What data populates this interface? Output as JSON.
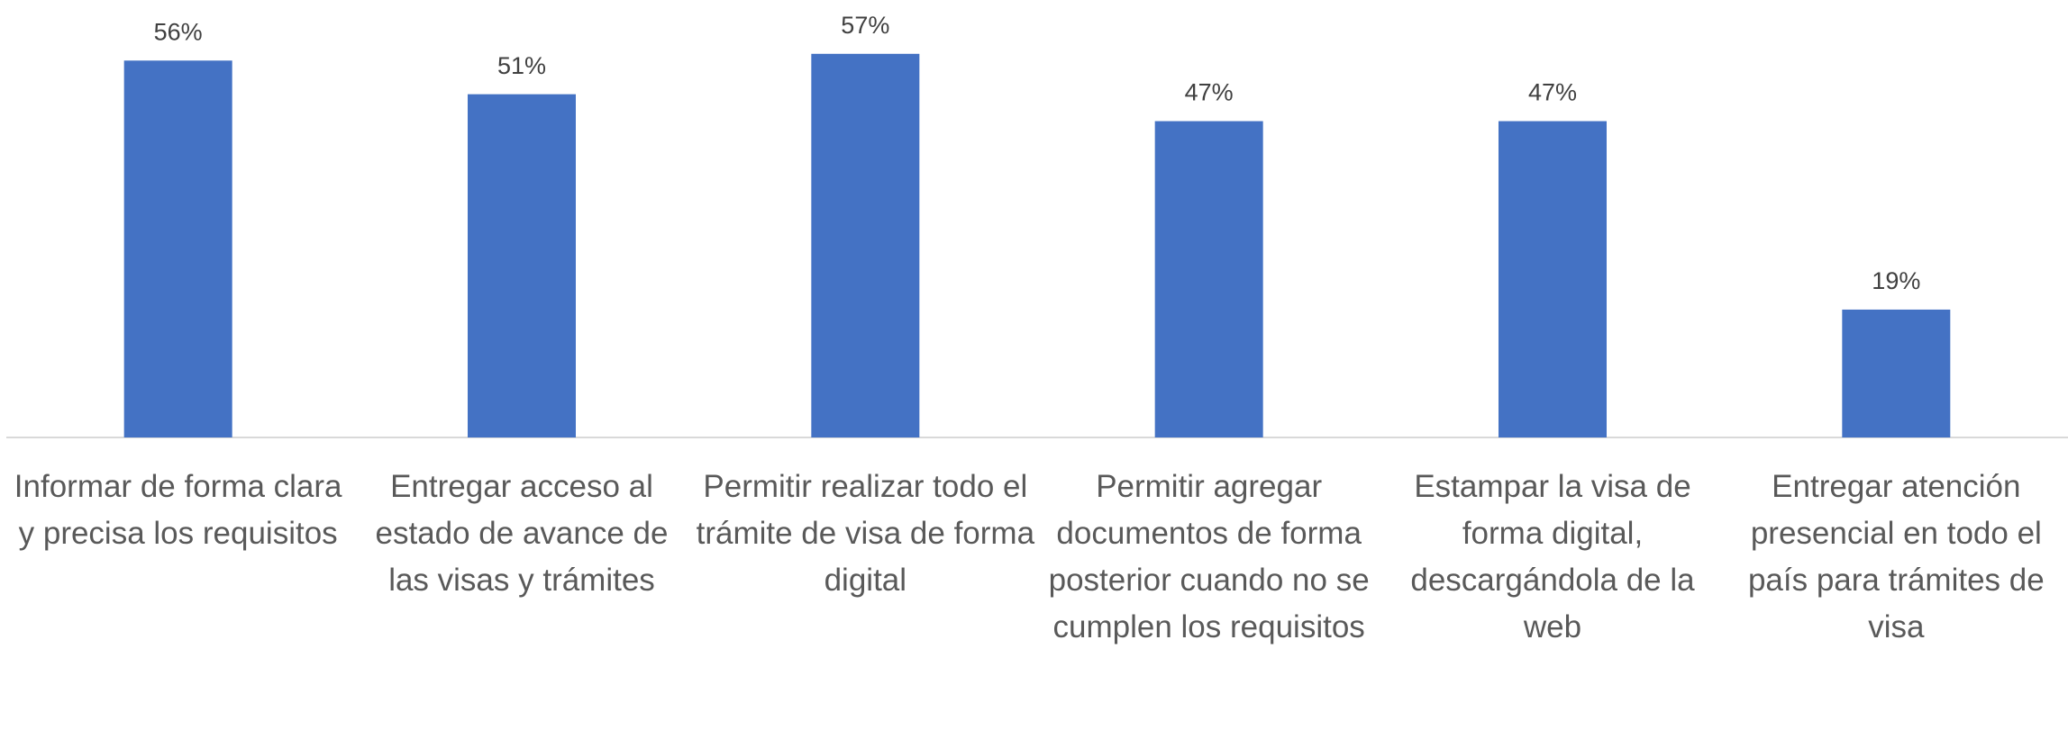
{
  "chart_data": {
    "type": "bar",
    "categories": [
      "Informar de forma clara y precisa los requisitos",
      "Entregar acceso al estado de avance de las visas y trámites",
      "Permitir realizar todo el trámite de visa de forma digital",
      "Permitir agregar documentos de forma posterior cuando no se cumplen los requisitos",
      "Estampar la visa de forma digital, descargándola de la web",
      "Entregar atención presencial en todo el país para trámites de visa"
    ],
    "values": [
      56,
      51,
      57,
      47,
      47,
      19
    ],
    "value_labels": [
      "56%",
      "51%",
      "57%",
      "47%",
      "47%",
      "19%"
    ],
    "color": "#4472c4",
    "ylim": [
      0,
      65
    ]
  }
}
